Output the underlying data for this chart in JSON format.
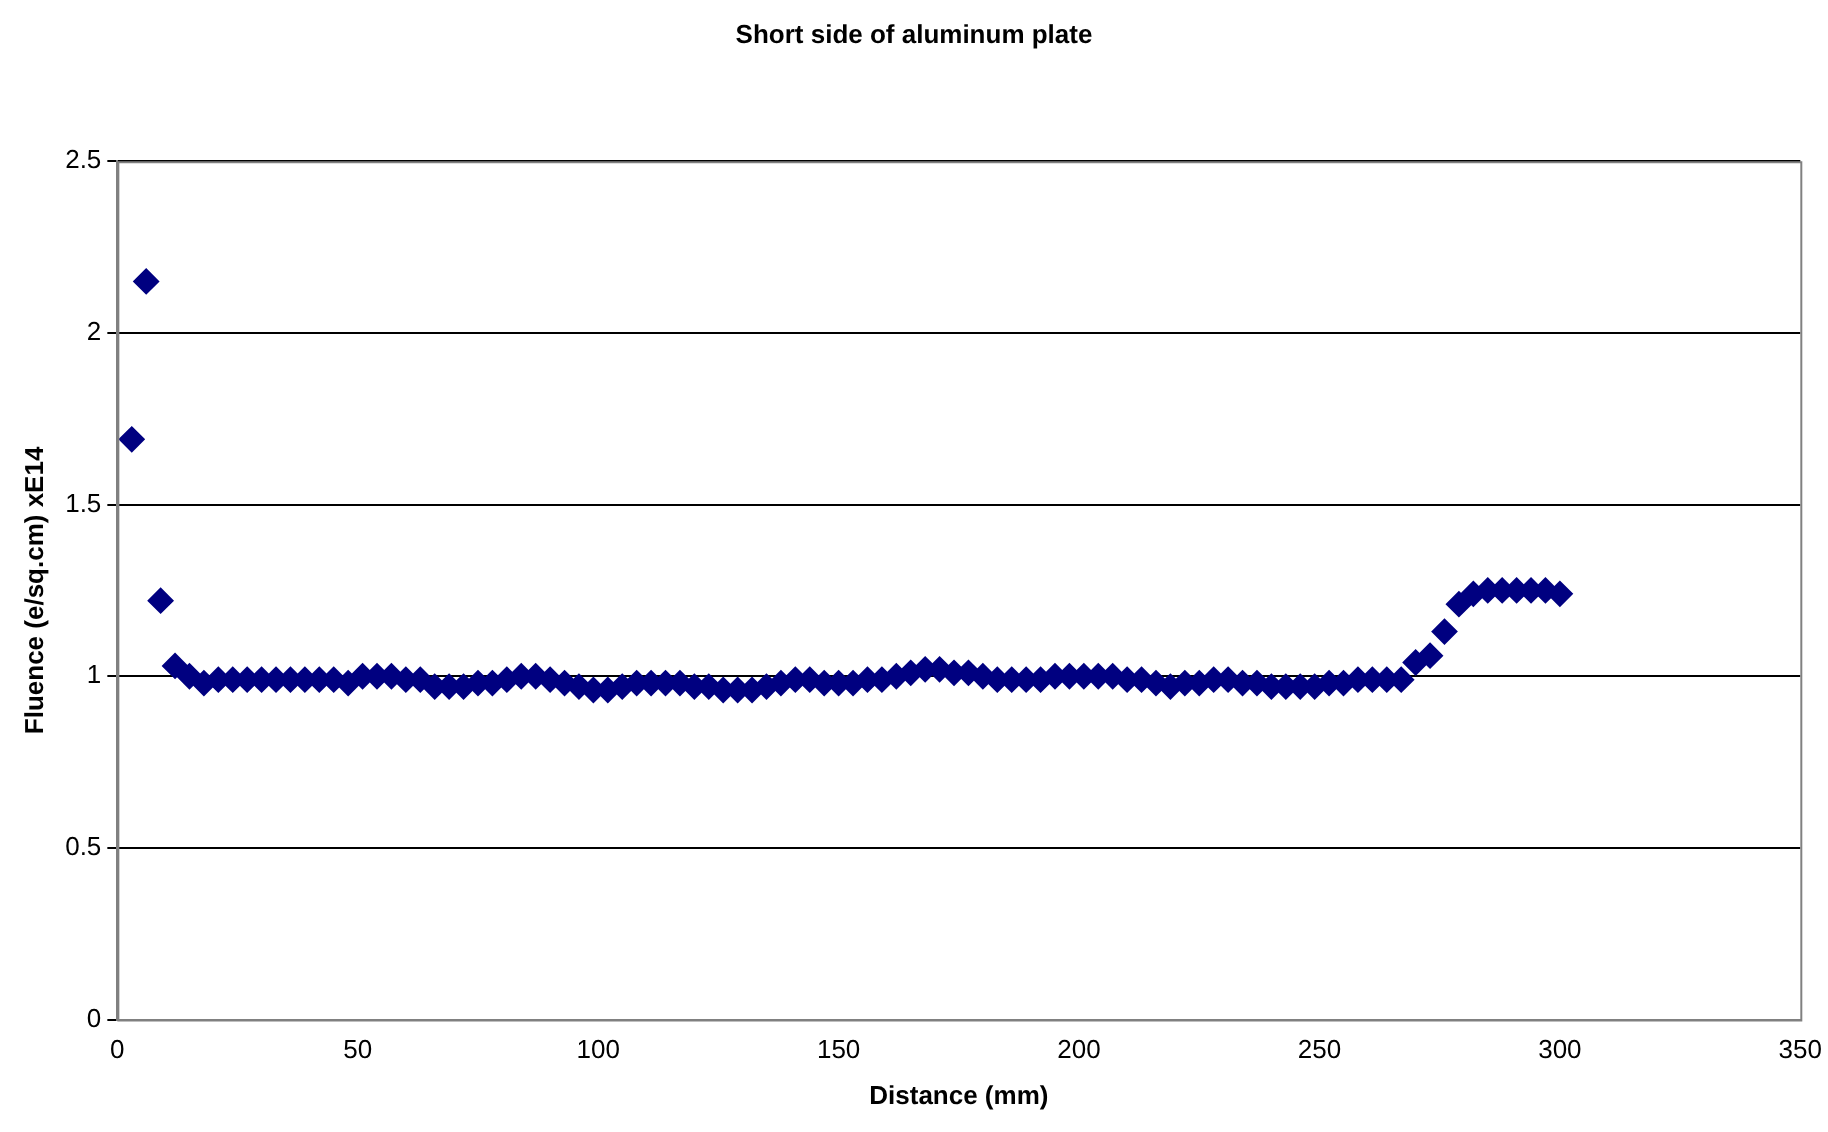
{
  "chart_data": {
    "type": "scatter",
    "title": "Short side of aluminum plate",
    "xlabel": "Distance (mm)",
    "ylabel": "Fluence (e/sq.cm) xE14",
    "x": [
      3,
      6,
      9,
      12,
      15,
      18,
      21,
      24,
      27,
      30,
      33,
      36,
      39,
      42,
      45,
      48,
      51,
      54,
      57,
      60,
      63,
      66,
      69,
      72,
      75,
      78,
      81,
      84,
      87,
      90,
      93,
      96,
      99,
      102,
      105,
      108,
      111,
      114,
      117,
      120,
      123,
      126,
      129,
      132,
      135,
      138,
      141,
      144,
      147,
      150,
      153,
      156,
      159,
      162,
      165,
      168,
      171,
      174,
      177,
      180,
      183,
      186,
      189,
      192,
      195,
      198,
      201,
      204,
      207,
      210,
      213,
      216,
      219,
      222,
      225,
      228,
      231,
      234,
      237,
      240,
      243,
      246,
      249,
      252,
      255,
      258,
      261,
      264,
      267,
      270,
      273,
      276,
      279,
      282,
      285,
      288,
      291,
      294,
      297,
      300
    ],
    "series": [
      {
        "color": "#000080",
        "values": [
          1.69,
          2.15,
          1.22,
          1.03,
          1.0,
          0.98,
          0.99,
          0.99,
          0.99,
          0.99,
          0.99,
          0.99,
          0.99,
          0.99,
          0.99,
          0.98,
          1.0,
          1.0,
          1.0,
          0.99,
          0.99,
          0.97,
          0.97,
          0.97,
          0.98,
          0.98,
          0.99,
          1.0,
          1.0,
          0.99,
          0.98,
          0.97,
          0.96,
          0.96,
          0.97,
          0.98,
          0.98,
          0.98,
          0.98,
          0.97,
          0.97,
          0.96,
          0.96,
          0.96,
          0.97,
          0.98,
          0.99,
          0.99,
          0.98,
          0.98,
          0.98,
          0.99,
          0.99,
          1.0,
          1.01,
          1.02,
          1.02,
          1.01,
          1.01,
          1.0,
          0.99,
          0.99,
          0.99,
          0.99,
          1.0,
          1.0,
          1.0,
          1.0,
          1.0,
          0.99,
          0.99,
          0.98,
          0.97,
          0.98,
          0.98,
          0.99,
          0.99,
          0.98,
          0.98,
          0.97,
          0.97,
          0.97,
          0.97,
          0.98,
          0.98,
          0.99,
          0.99,
          0.99,
          0.99,
          1.04,
          1.06,
          1.13,
          1.21,
          1.24,
          1.25,
          1.25,
          1.25,
          1.25,
          1.25,
          1.24
        ]
      }
    ],
    "xlim": [
      0,
      350
    ],
    "xticks": [
      0,
      50,
      100,
      150,
      200,
      250,
      300,
      350
    ],
    "ylim": [
      0,
      2.5
    ],
    "yticks": [
      0,
      0.5,
      1,
      1.5,
      2,
      2.5
    ],
    "grid": "y",
    "legend": false,
    "marker": "diamond"
  }
}
